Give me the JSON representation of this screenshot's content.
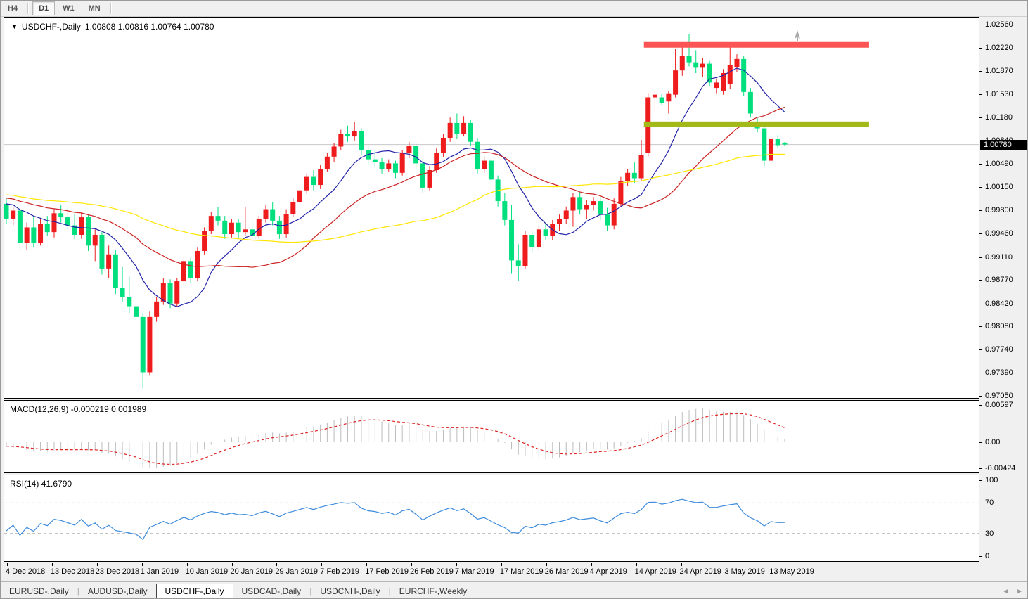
{
  "toolbar": {
    "timeframes": [
      "H4",
      "D1",
      "W1",
      "MN"
    ],
    "active": "D1"
  },
  "chart_header": {
    "symbol_label": "USDCHF-,Daily",
    "quote_line": "1.00808 1.00816 1.00764 1.00780"
  },
  "price_axis": {
    "bid_tag": "1.00780",
    "labels": [
      "1.02560",
      "1.02220",
      "1.01870",
      "1.01530",
      "1.01180",
      "1.00840",
      "1.00490",
      "1.00150",
      "0.99800",
      "0.99460",
      "0.99110",
      "0.98770",
      "0.98420",
      "0.98080",
      "0.97740",
      "0.97390",
      "0.97050"
    ]
  },
  "macd_panel": {
    "label": "MACD(12,26,9)",
    "values": "-0.000219 0.001989",
    "axis_labels": [
      "0.00597",
      "0.00",
      "-0.00424"
    ]
  },
  "rsi_panel": {
    "label": "RSI(14)",
    "value": "41.6790",
    "axis_labels": [
      "100",
      "70",
      "30",
      "0"
    ]
  },
  "tab_bar": {
    "tabs": [
      {
        "label": "EURUSD-,Daily",
        "active": false
      },
      {
        "label": "AUDUSD-,Daily",
        "active": false
      },
      {
        "label": "USDCHF-,Daily",
        "active": true
      },
      {
        "label": "USDCAD-,Daily",
        "active": false
      },
      {
        "label": "USDCNH-,Daily",
        "active": false
      },
      {
        "label": "EURCHF-,Weekly",
        "active": false
      }
    ],
    "scroll_left_icon": "◄",
    "scroll_right_icon": "►"
  },
  "colors": {
    "bull_candle": "#ee1c1c",
    "bear_candle": "#00df7e",
    "resistance_bar": "#fa5454",
    "support_bar": "#a3b918",
    "ma_fast": "#2323aa",
    "ma_mid": "#cc2222",
    "ma_slow": "#ffe600",
    "macd_hist": "#bcbcbc",
    "macd_signal": "#dd2222",
    "rsi_line": "#3d8bdd",
    "rsi_levels": "#bbbbbb",
    "bid_line": "#c8c8c8"
  },
  "chart_data": {
    "type": "candlestick",
    "symbol": "USDCHF",
    "timeframe": "Daily",
    "title": "USDCHF-,Daily 1.00808 1.00816 1.00764 1.00780",
    "price_range": {
      "top": 1.0256,
      "bottom": 0.9705
    },
    "y_ticks": [
      1.0256,
      1.0222,
      1.0187,
      1.0153,
      1.0118,
      1.0084,
      1.0049,
      1.0015,
      0.998,
      0.9946,
      0.9911,
      0.9877,
      0.9842,
      0.9808,
      0.9774,
      0.9739,
      0.9705
    ],
    "x_ticks": [
      "4 Dec 2018",
      "13 Dec 2018",
      "23 Dec 2018",
      "1 Jan 2019",
      "10 Jan 2019",
      "20 Jan 2019",
      "29 Jan 2019",
      "7 Feb 2019",
      "17 Feb 2019",
      "26 Feb 2019",
      "7 Mar 2019",
      "17 Mar 2019",
      "26 Mar 2019",
      "4 Apr 2019",
      "14 Apr 2019",
      "24 Apr 2019",
      "3 May 2019",
      "13 May 2019"
    ],
    "bid_price": 1.0078,
    "ohlc": [
      [
        0.999,
        0.9998,
        0.996,
        0.9968
      ],
      [
        0.9968,
        0.9985,
        0.9958,
        0.998
      ],
      [
        0.998,
        0.9983,
        0.992,
        0.9932
      ],
      [
        0.9932,
        0.9962,
        0.9922,
        0.9955
      ],
      [
        0.9955,
        0.9972,
        0.9925,
        0.9932
      ],
      [
        0.9932,
        0.9968,
        0.9928,
        0.996
      ],
      [
        0.996,
        0.9972,
        0.9942,
        0.9948
      ],
      [
        0.9948,
        0.9982,
        0.994,
        0.9976
      ],
      [
        0.9976,
        0.9988,
        0.9962,
        0.997
      ],
      [
        0.997,
        0.9985,
        0.9952,
        0.9958
      ],
      [
        0.9958,
        0.9975,
        0.9938,
        0.9944
      ],
      [
        0.9944,
        0.9976,
        0.9938,
        0.997
      ],
      [
        0.997,
        0.9974,
        0.992,
        0.9928
      ],
      [
        0.9928,
        0.9952,
        0.9905,
        0.9944
      ],
      [
        0.9944,
        0.9948,
        0.9885,
        0.9894
      ],
      [
        0.9894,
        0.9928,
        0.988,
        0.9915
      ],
      [
        0.9915,
        0.9922,
        0.9856,
        0.9865
      ],
      [
        0.9865,
        0.9896,
        0.9845,
        0.9852
      ],
      [
        0.9852,
        0.9882,
        0.9828,
        0.9838
      ],
      [
        0.9838,
        0.9848,
        0.9812,
        0.9822
      ],
      [
        0.9822,
        0.9828,
        0.9716,
        0.974
      ],
      [
        0.974,
        0.983,
        0.9735,
        0.9822
      ],
      [
        0.9822,
        0.9852,
        0.9815,
        0.9845
      ],
      [
        0.9845,
        0.988,
        0.984,
        0.9872
      ],
      [
        0.9872,
        0.9878,
        0.9835,
        0.9842
      ],
      [
        0.9842,
        0.988,
        0.9838,
        0.9875
      ],
      [
        0.9875,
        0.9912,
        0.987,
        0.9905
      ],
      [
        0.9905,
        0.991,
        0.9872,
        0.988
      ],
      [
        0.988,
        0.9925,
        0.9875,
        0.992
      ],
      [
        0.992,
        0.9955,
        0.9915,
        0.995
      ],
      [
        0.995,
        0.9978,
        0.9945,
        0.9972
      ],
      [
        0.9972,
        0.9985,
        0.9958,
        0.9965
      ],
      [
        0.9965,
        0.9972,
        0.9938,
        0.9945
      ],
      [
        0.9945,
        0.9968,
        0.994,
        0.9962
      ],
      [
        0.9962,
        0.9968,
        0.9938,
        0.9948
      ],
      [
        0.9948,
        0.9985,
        0.9942,
        0.9952
      ],
      [
        0.9952,
        0.9968,
        0.9935,
        0.9942
      ],
      [
        0.9942,
        0.9972,
        0.9938,
        0.9968
      ],
      [
        0.9968,
        0.9988,
        0.9962,
        0.9982
      ],
      [
        0.9982,
        0.9992,
        0.9958,
        0.9965
      ],
      [
        0.9965,
        0.9972,
        0.9938,
        0.9945
      ],
      [
        0.9945,
        0.9982,
        0.994,
        0.9975
      ],
      [
        0.9975,
        0.9998,
        0.997,
        0.9992
      ],
      [
        0.9992,
        1.0015,
        0.9988,
        1.001
      ],
      [
        1.001,
        1.0035,
        1.0005,
        1.003
      ],
      [
        1.003,
        1.004,
        1.001,
        1.0018
      ],
      [
        1.0018,
        1.0048,
        1.0012,
        1.0042
      ],
      [
        1.0042,
        1.0065,
        1.0038,
        1.006
      ],
      [
        1.006,
        1.008,
        1.0052,
        1.0075
      ],
      [
        1.0075,
        1.01,
        1.007,
        1.0094
      ],
      [
        1.0094,
        1.0106,
        1.0082,
        1.009
      ],
      [
        1.009,
        1.0112,
        1.0084,
        1.0098
      ],
      [
        1.0098,
        1.0102,
        1.0062,
        1.007
      ],
      [
        1.007,
        1.0076,
        1.0048,
        1.0056
      ],
      [
        1.0056,
        1.0068,
        1.0045,
        1.0052
      ],
      [
        1.0052,
        1.0058,
        1.0035,
        1.0042
      ],
      [
        1.0042,
        1.0056,
        1.0038,
        1.005
      ],
      [
        1.005,
        1.0054,
        1.0028,
        1.0036
      ],
      [
        1.0036,
        1.007,
        1.0032,
        1.0065
      ],
      [
        1.0065,
        1.0082,
        1.0058,
        1.0076
      ],
      [
        1.0076,
        1.008,
        1.0042,
        1.005
      ],
      [
        1.005,
        1.0054,
        1.0006,
        1.0014
      ],
      [
        1.0014,
        1.0046,
        1.001,
        1.004
      ],
      [
        1.004,
        1.0072,
        1.0036,
        1.0066
      ],
      [
        1.0066,
        1.0094,
        1.006,
        1.0088
      ],
      [
        1.0088,
        1.0118,
        1.0082,
        1.011
      ],
      [
        1.011,
        1.0124,
        1.0086,
        1.0094
      ],
      [
        1.0094,
        1.012,
        1.009,
        1.011
      ],
      [
        1.011,
        1.0114,
        1.0076,
        1.0082
      ],
      [
        1.0082,
        1.0088,
        1.0035,
        1.0042
      ],
      [
        1.0042,
        1.006,
        1.0036,
        1.0054
      ],
      [
        1.0054,
        1.0058,
        1.002,
        1.0026
      ],
      [
        1.0026,
        1.0032,
        0.9986,
        0.9994
      ],
      [
        0.9994,
        1.0006,
        0.9958,
        0.9966
      ],
      [
        0.9966,
        0.9988,
        0.9886,
        0.9906
      ],
      [
        0.9906,
        0.993,
        0.9876,
        0.9898
      ],
      [
        0.9898,
        0.995,
        0.9894,
        0.9944
      ],
      [
        0.9944,
        0.995,
        0.9918,
        0.9926
      ],
      [
        0.9926,
        0.9958,
        0.9922,
        0.9952
      ],
      [
        0.9952,
        0.996,
        0.9936,
        0.9942
      ],
      [
        0.9942,
        0.9966,
        0.9936,
        0.996
      ],
      [
        0.996,
        0.9974,
        0.995,
        0.9968
      ],
      [
        0.9968,
        0.9986,
        0.996,
        0.998
      ],
      [
        0.998,
        1.0006,
        0.9956,
        1.0
      ],
      [
        1.0,
        1.0008,
        0.9974,
        0.9982
      ],
      [
        0.9982,
        0.9996,
        0.9968,
        0.9988
      ],
      [
        0.9988,
        1.0,
        0.998,
        0.9994
      ],
      [
        0.9994,
        1.0,
        0.9966,
        0.9974
      ],
      [
        0.9974,
        0.9984,
        0.995,
        0.9958
      ],
      [
        0.9958,
        0.9998,
        0.9952,
        0.999
      ],
      [
        0.999,
        1.003,
        0.9985,
        1.0024
      ],
      [
        1.0024,
        1.0042,
        1.0016,
        1.0036
      ],
      [
        1.0036,
        1.0052,
        1.002,
        1.0028
      ],
      [
        1.0028,
        1.0085,
        1.0024,
        1.0062
      ],
      [
        1.0066,
        1.0154,
        1.006,
        1.0148
      ],
      [
        1.0148,
        1.0158,
        1.0126,
        1.0152
      ],
      [
        1.0148,
        1.0153,
        1.0136,
        1.014
      ],
      [
        1.0142,
        1.0158,
        1.0124,
        1.0154
      ],
      [
        1.0152,
        1.022,
        1.0148,
        1.0188
      ],
      [
        1.0188,
        1.0228,
        1.018,
        1.021
      ],
      [
        1.021,
        1.0242,
        1.0194,
        1.02
      ],
      [
        1.02,
        1.0218,
        1.0184,
        1.0192
      ],
      [
        1.0192,
        1.0206,
        1.0178,
        1.0198
      ],
      [
        1.0198,
        1.0202,
        1.0164,
        1.017
      ],
      [
        1.0162,
        1.0176,
        1.0154,
        1.017
      ],
      [
        1.0158,
        1.019,
        1.0152,
        1.0184
      ],
      [
        1.0168,
        1.0228,
        1.016,
        1.0196
      ],
      [
        1.0193,
        1.0212,
        1.0186,
        1.0205
      ],
      [
        1.0205,
        1.021,
        1.015,
        1.0156
      ],
      [
        1.0156,
        1.0162,
        1.0118,
        1.0124
      ],
      [
        1.011,
        1.0117,
        1.0096,
        1.0102
      ],
      [
        1.0102,
        1.0106,
        1.0046,
        1.0054
      ],
      [
        1.0054,
        1.009,
        1.0048,
        1.0086
      ],
      [
        1.0086,
        1.0092,
        1.0072,
        1.0077
      ],
      [
        1.00808,
        1.00816,
        1.00764,
        1.0078
      ]
    ],
    "warmup_closes": [
      1.0022,
      1.0018,
      1.0025,
      1.003,
      1.0026,
      1.002,
      1.0012,
      1.0018,
      1.001,
      1.0005,
      1.001,
      1.0016,
      1.0008,
      1.0,
      1.0006,
      0.9998,
      0.9992,
      0.9998,
      1.0004,
      0.9996,
      0.999,
      0.9996,
      1.0002,
      0.9994,
      0.9988,
      0.9992,
      0.9985,
      0.999,
      0.9996,
      0.9988
    ],
    "overlays": {
      "moving_averages": [
        {
          "period": 10,
          "color_key": "ma_fast"
        },
        {
          "period": 25,
          "color_key": "ma_mid"
        },
        {
          "period": 50,
          "color_key": "ma_slow"
        }
      ],
      "horizontal_bars": [
        {
          "name": "resistance",
          "price": 1.0226,
          "thickness": 8,
          "color_key": "resistance_bar"
        },
        {
          "name": "support",
          "price": 1.0108,
          "thickness": 8,
          "color_key": "support_bar"
        }
      ]
    },
    "macd": {
      "fast": 12,
      "slow": 26,
      "signal": 9,
      "scale_max": 0.00597,
      "scale_min": -0.00424,
      "current_main": -0.000219,
      "current_signal": 0.001989
    },
    "rsi": {
      "period": 14,
      "levels": [
        70,
        30
      ],
      "current": 41.679
    }
  }
}
